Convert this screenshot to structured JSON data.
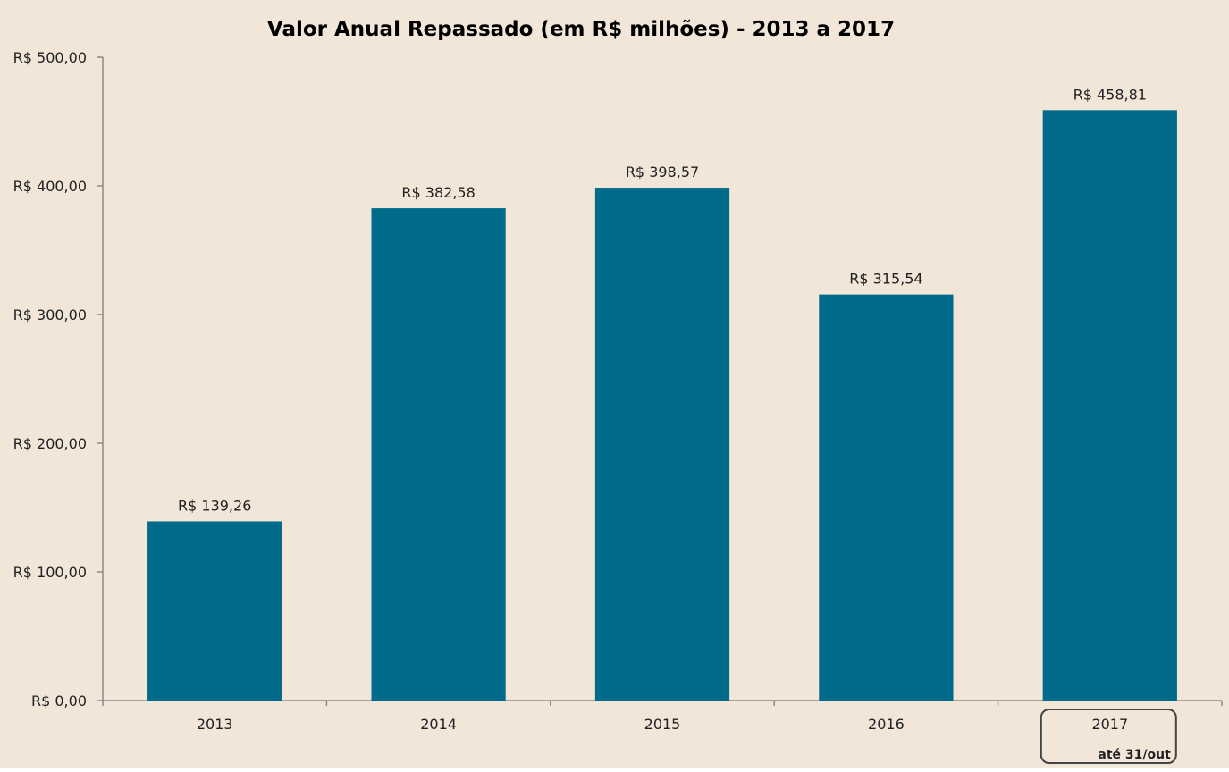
{
  "chart_data": {
    "type": "bar",
    "title": "Valor Anual Repassado (em R$ milhões) - 2013 a 2017",
    "categories": [
      "2013",
      "2014",
      "2015",
      "2016",
      "2017"
    ],
    "values": [
      139.26,
      382.58,
      398.57,
      315.54,
      458.81
    ],
    "data_labels": [
      "R$ 139,26",
      "R$ 382,58",
      "R$ 398,57",
      "R$ 315,54",
      "R$ 458,81"
    ],
    "y_ticks": [
      0,
      100,
      200,
      300,
      400,
      500
    ],
    "y_tick_labels": [
      "R$ 0,00",
      "R$ 100,00",
      "R$ 200,00",
      "R$ 300,00",
      "R$ 400,00",
      "R$ 500,00"
    ],
    "ylim": [
      0,
      500
    ],
    "xlabel": "",
    "ylabel": "",
    "grid": false,
    "legend": "none",
    "annotation": {
      "category": "2017",
      "text": "até 31/out"
    },
    "colors": {
      "background": "#f2e6d8",
      "bar": "#006b8a",
      "axis": "#8a8a8a",
      "text": "#222222",
      "annotation_border": "#444444"
    }
  }
}
